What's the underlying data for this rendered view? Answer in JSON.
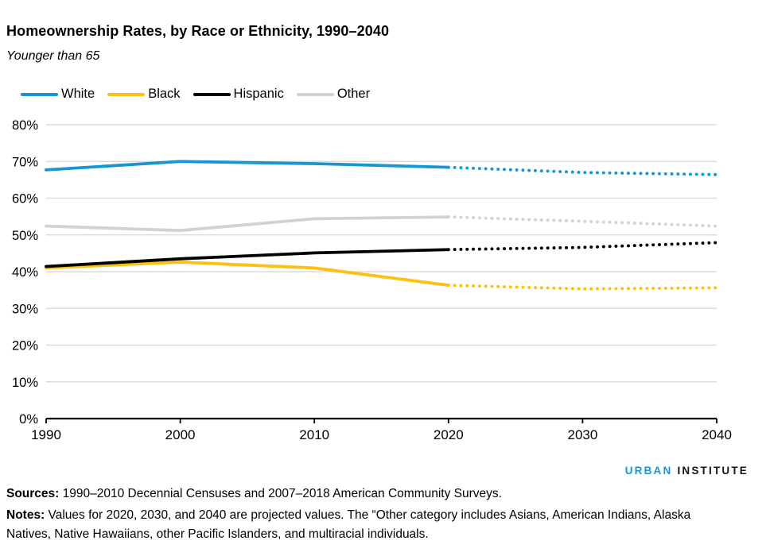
{
  "header": {
    "title": "Homeownership Rates, by Race or Ethnicity, 1990–2040",
    "subtitle": "Younger than 65"
  },
  "chart_data": {
    "type": "line",
    "title": "Homeownership Rates, by Race or Ethnicity, 1990–2040",
    "subtitle": "Younger than 65",
    "x": [
      1990,
      2000,
      2010,
      2020,
      2030,
      2040
    ],
    "series": [
      {
        "name": "White",
        "color": "#1696d2",
        "values": [
          67.7,
          70.0,
          69.4,
          68.4,
          67.0,
          66.4
        ]
      },
      {
        "name": "Black",
        "color": "#fdbf11",
        "values": [
          41.0,
          42.6,
          41.0,
          36.3,
          35.3,
          35.6
        ]
      },
      {
        "name": "Hispanic",
        "color": "#000000",
        "values": [
          41.4,
          43.5,
          45.1,
          46.0,
          46.6,
          47.9
        ]
      },
      {
        "name": "Other",
        "color": "#d2d2d2",
        "values": [
          52.4,
          51.2,
          54.4,
          54.9,
          53.7,
          52.4
        ]
      }
    ],
    "projection_start_x": 2020,
    "projection_style": "dotted",
    "ylim": [
      0,
      80
    ],
    "ytick_step": 10,
    "ytick_suffix": "%",
    "xlabel": "",
    "ylabel": "",
    "grid": "horizontal",
    "gridline_color": "#dcdcdc",
    "axis_color": "#000000",
    "legend_position": "top-left"
  },
  "footer": {
    "logo_urban": "URBAN",
    "logo_institute": "INSTITUTE",
    "sources_label": "Sources:",
    "sources_text": " 1990–2010 Decennial Censuses and 2007–2018 American Community Surveys.",
    "notes_label": "Notes:",
    "notes_text": " Values for 2020, 2030, and 2040 are projected values. The “Other category includes Asians, American Indians, Alaska Natives, Native Hawaiians, other Pacific Islanders, and multiracial individuals."
  }
}
